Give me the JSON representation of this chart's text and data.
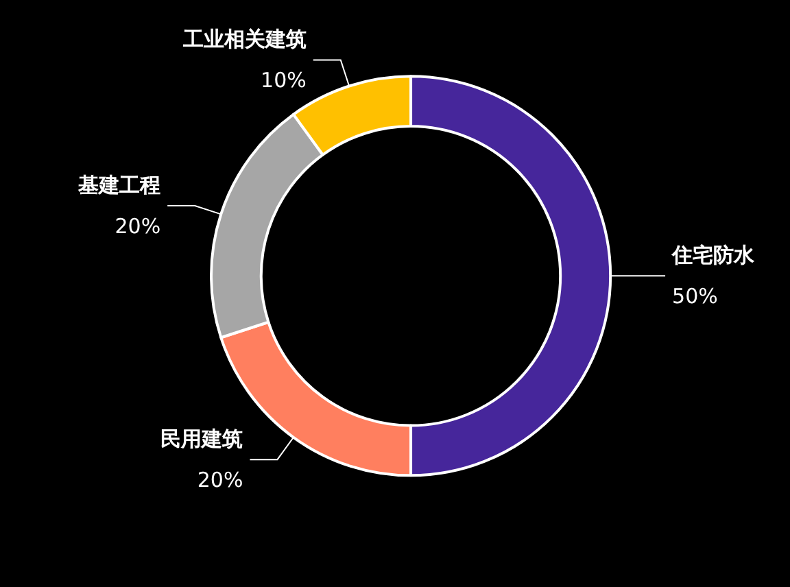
{
  "chart_data": {
    "type": "donut",
    "categories": [
      "住宅防水",
      "民用建筑",
      "基建工程",
      "工业相关建筑"
    ],
    "values": [
      50,
      20,
      20,
      10
    ],
    "value_labels": [
      "50%",
      "20%",
      "20%",
      "10%"
    ],
    "colors": [
      "#46269b",
      "#ff7f5f",
      "#a6a6a6",
      "#ffc000"
    ],
    "legend": false
  }
}
